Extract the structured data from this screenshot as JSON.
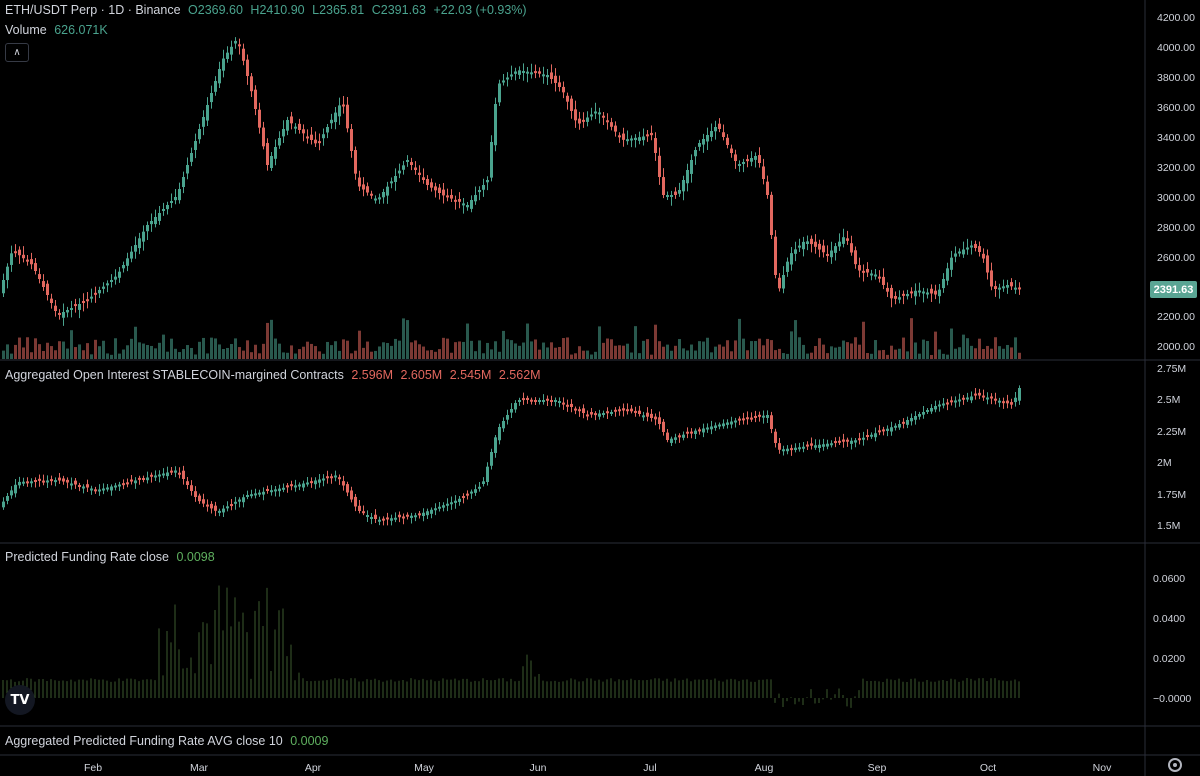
{
  "header": {
    "symbol": "ETH/USDT Perp · 1D · Binance",
    "open": "O2369.60",
    "high": "H2410.90",
    "low": "L2365.81",
    "close": "C2391.63",
    "change": "+22.03 (+0.93%)",
    "volume_label": "Volume",
    "volume_value": "626.071K"
  },
  "price_badge": "2391.63",
  "price_axis": [
    "4200.00",
    "4000.00",
    "3800.00",
    "3600.00",
    "3400.00",
    "3200.00",
    "3000.00",
    "2800.00",
    "2600.00",
    "2200.00",
    "2000.00"
  ],
  "oi_panel": {
    "label": "Aggregated Open Interest STABLECOIN-margined Contracts",
    "values": [
      "2.596M",
      "2.605M",
      "2.545M",
      "2.562M"
    ],
    "axis": [
      "2.75M",
      "2.5M",
      "2.25M",
      "2M",
      "1.75M",
      "1.5M"
    ]
  },
  "funding_panel": {
    "label": "Predicted Funding Rate close",
    "value": "0.0098",
    "axis": [
      "0.0600",
      "0.0400",
      "0.0200",
      "−0.0000"
    ]
  },
  "agg_funding_panel": {
    "label": "Aggregated Predicted Funding Rate AVG close 10",
    "value": "0.0009"
  },
  "time_axis": [
    "Feb",
    "Mar",
    "Apr",
    "May",
    "Jun",
    "Jul",
    "Aug",
    "Sep",
    "Oct",
    "Nov"
  ],
  "logo_text": "TV",
  "colors": {
    "up": "#4aa38e",
    "down": "#e2685f",
    "funding": "#3d5a2e",
    "badge": "#5aa594"
  },
  "icons": {
    "collapse": "chevron-up-icon",
    "settings": "gear-icon",
    "logo": "tradingview-logo"
  }
}
